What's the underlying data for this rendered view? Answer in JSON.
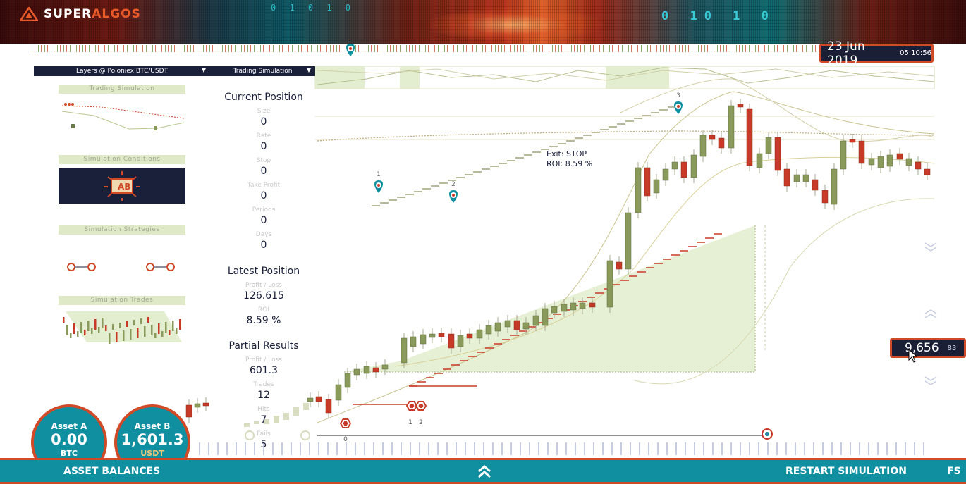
{
  "header": {
    "logo_text_1": "SUPER",
    "logo_text_2": "ALGOS",
    "binary_top": "0 1 0 1 0",
    "binary_right": "0 10 1 0"
  },
  "datetime": {
    "date": "23 Jun 2019",
    "time": "05:10:56"
  },
  "layers_panel": {
    "layers_label": "Layers @ Poloniex BTC/USDT",
    "simulation_label": "Trading Simulation",
    "thumbnails": [
      {
        "title": "Trading Simulation"
      },
      {
        "title": "Simulation Conditions"
      },
      {
        "title": "Simulation Strategies"
      },
      {
        "title": "Simulation Trades"
      }
    ]
  },
  "current_position": {
    "title": "Current Position",
    "fields": [
      {
        "label": "Size",
        "value": "0"
      },
      {
        "label": "Rate",
        "value": "0"
      },
      {
        "label": "Stop",
        "value": "0"
      },
      {
        "label": "Take Profit",
        "value": "0"
      },
      {
        "label": "Periods",
        "value": "0"
      },
      {
        "label": "Days",
        "value": "0"
      }
    ]
  },
  "latest_position": {
    "title": "Latest Position",
    "fields": [
      {
        "label": "Profit / Loss",
        "value": "126.615"
      },
      {
        "label": "ROI",
        "value": "8.59 %"
      }
    ]
  },
  "partial_results": {
    "title": "Partial Results",
    "fields": [
      {
        "label": "Profit / Loss",
        "value": "601.3"
      },
      {
        "label": "Trades",
        "value": "12"
      },
      {
        "label": "Hits",
        "value": "7"
      },
      {
        "label": "Fails",
        "value": "5"
      }
    ]
  },
  "chart": {
    "exit_label": "Exit: STOP",
    "roi_label": "ROI: 8.59 %",
    "markers": [
      "1",
      "2",
      "3"
    ],
    "trigger_labels": [
      "1",
      "2"
    ],
    "strategy_label": "0",
    "current_price": "9,656",
    "price_suffix": "83"
  },
  "assets": {
    "a": {
      "label": "Asset A",
      "value": "0.00",
      "currency": "BTC"
    },
    "b": {
      "label": "Asset B",
      "value": "1,601.3",
      "currency": "USDT"
    }
  },
  "footer": {
    "asset_balances": "ASSET BALANCES",
    "restart": "RESTART SIMULATION",
    "fs": "FS"
  },
  "colors": {
    "accent": "#d04a28",
    "navy": "#1a1f3a",
    "teal": "#0f8fa0",
    "candle_up": "#8a9a5a",
    "candle_down": "#c83a28",
    "area_fill": "#e3eed0"
  }
}
